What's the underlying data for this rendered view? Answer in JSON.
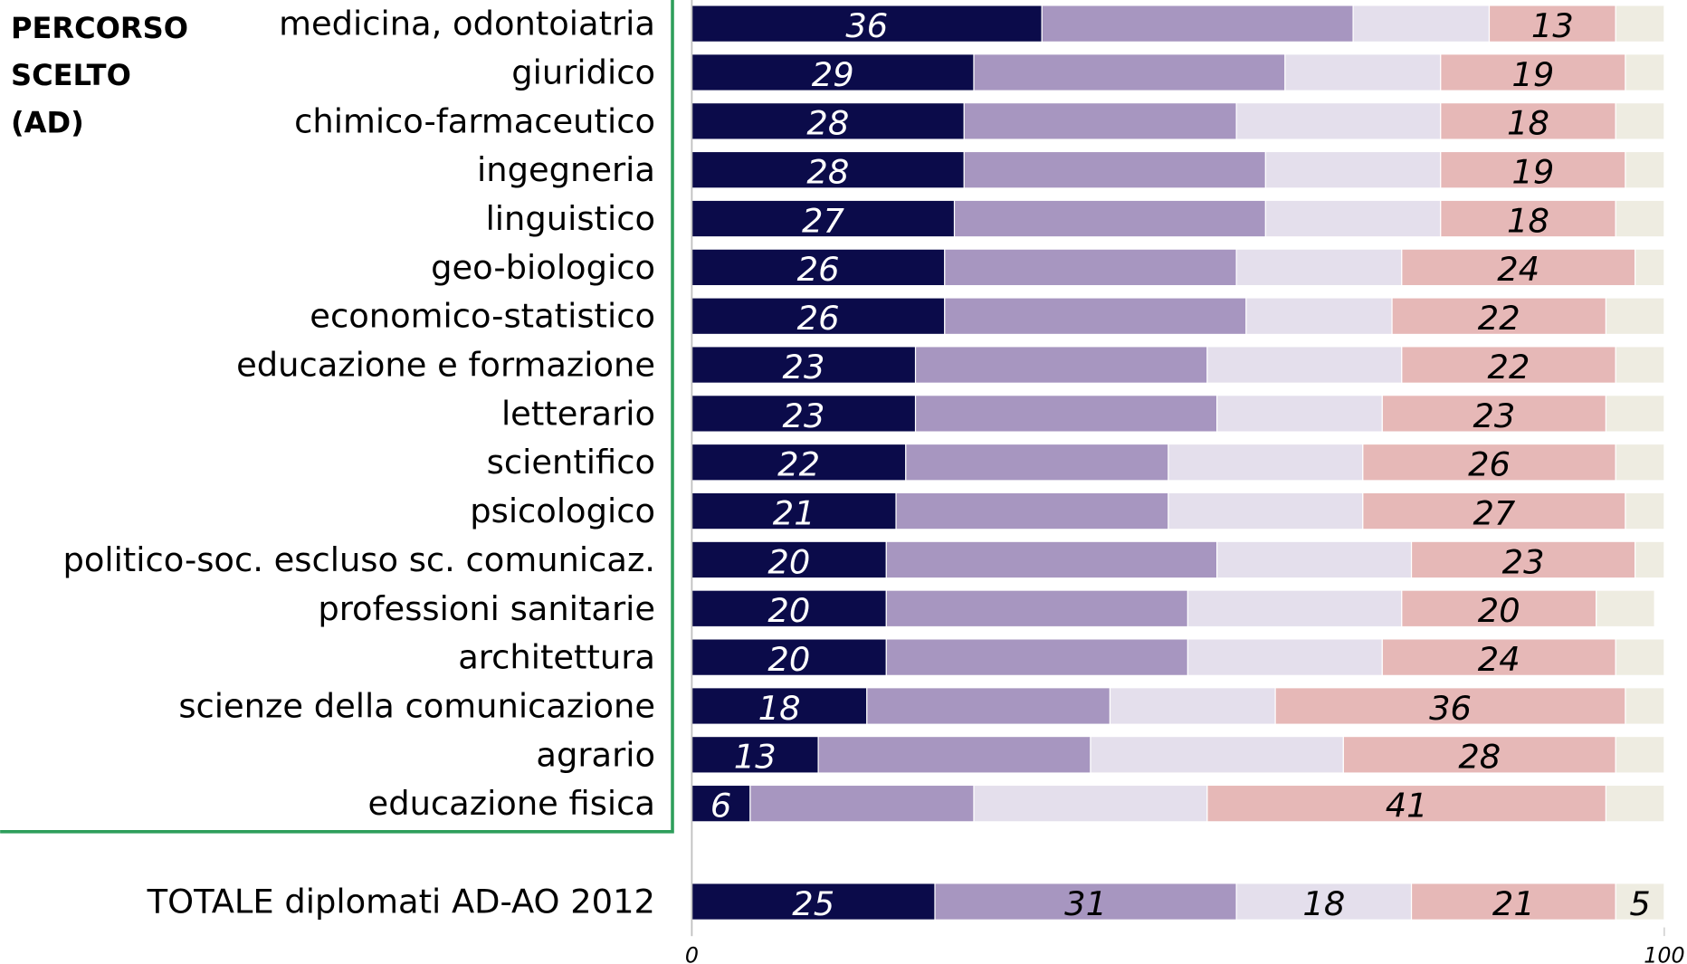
{
  "chart_data": {
    "type": "stacked-bar",
    "group_label": [
      "PERCORSO",
      "SCELTO",
      "(AD)"
    ],
    "categories": [
      "medicina, odontoiatria",
      "giuridico",
      "chimico-farmaceutico",
      "ingegneria",
      "linguistico",
      "geo-biologico",
      "economico-statistico",
      "educazione e formazione",
      "letterario",
      "scientifico",
      "psicologico",
      "politico-soc. escluso sc. comunicaz.",
      "professioni sanitarie",
      "architettura",
      "scienze della comunicazione",
      "agrario",
      "educazione fisica"
    ],
    "series": [
      {
        "color": "#0b0b4a",
        "label_color": "#ffffff",
        "show_labels": true,
        "values": [
          36,
          29,
          28,
          28,
          27,
          26,
          26,
          23,
          23,
          22,
          21,
          20,
          20,
          20,
          18,
          13,
          6
        ]
      },
      {
        "color": "#a796c0",
        "label_color": "#000000",
        "show_labels": false,
        "values": [
          32,
          32,
          28,
          31,
          32,
          30,
          31,
          30,
          31,
          27,
          28,
          34,
          31,
          31,
          25,
          28,
          23
        ]
      },
      {
        "color": "#e4dfec",
        "label_color": "#000000",
        "show_labels": false,
        "values": [
          14,
          16,
          21,
          18,
          18,
          17,
          15,
          20,
          17,
          20,
          20,
          20,
          22,
          20,
          17,
          26,
          24
        ]
      },
      {
        "color": "#e6b8b7",
        "label_color": "#000000",
        "show_labels": true,
        "values": [
          13,
          19,
          18,
          19,
          18,
          24,
          22,
          22,
          23,
          26,
          27,
          23,
          20,
          24,
          36,
          28,
          41
        ]
      },
      {
        "color": "#eeece1",
        "label_color": "#000000",
        "show_labels": false,
        "values": [
          5,
          4,
          5,
          4,
          5,
          3,
          6,
          5,
          6,
          5,
          4,
          3,
          6,
          5,
          4,
          5,
          6
        ]
      }
    ],
    "total": {
      "category": "TOTALE diplomati AD-AO 2012",
      "values": [
        25,
        31,
        18,
        21,
        5
      ]
    },
    "xlim": [
      0,
      100
    ],
    "xticks": [
      0,
      100
    ]
  }
}
